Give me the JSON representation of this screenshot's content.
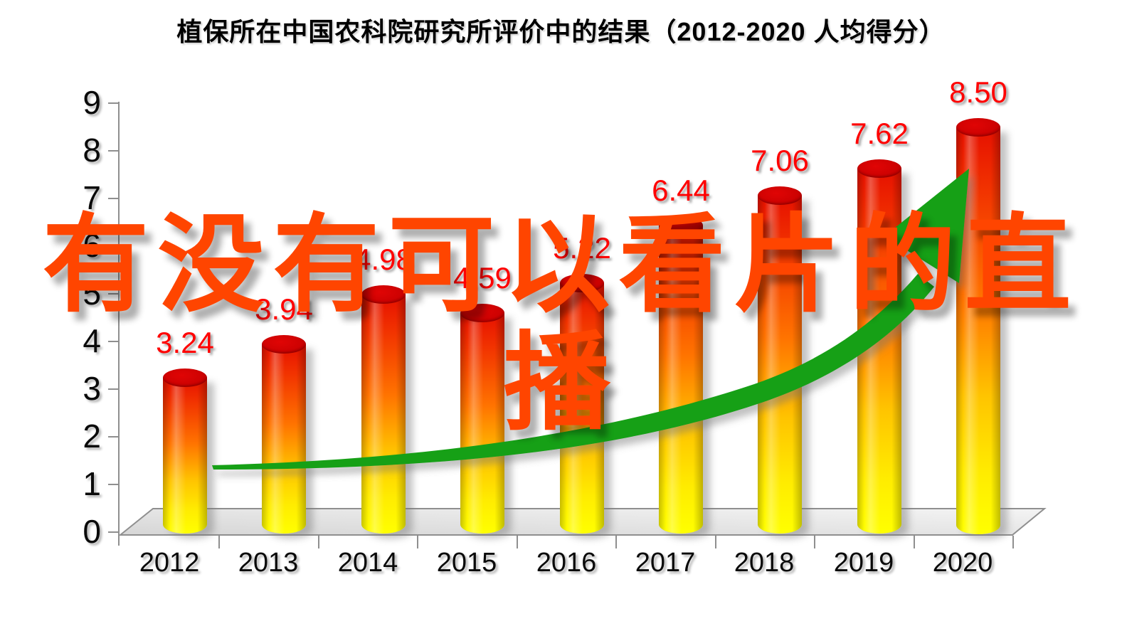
{
  "title": "植保所在中国农科院研究所评价中的结果（2012-2020  人均得分）",
  "watermark": {
    "line1": "有没有可以看片的直",
    "line2": "播"
  },
  "chart_data": {
    "type": "bar",
    "title": "植保所在中国农科院研究所评价中的结果（2012-2020  人均得分）",
    "categories": [
      "2012",
      "2013",
      "2014",
      "2015",
      "2016",
      "2017",
      "2018",
      "2019",
      "2020"
    ],
    "values": [
      3.24,
      3.94,
      4.98,
      4.59,
      5.22,
      6.44,
      7.06,
      7.62,
      8.5
    ],
    "data_labels": [
      "3.24",
      "3.94",
      "4.98",
      "4.59",
      "5.22",
      "6.44",
      "7.06",
      "7.62",
      "8.50"
    ],
    "xlabel": "",
    "ylabel": "",
    "y_ticks": [
      0,
      1,
      2,
      3,
      4,
      5,
      6,
      7,
      8,
      9
    ],
    "ylim": [
      0,
      9
    ],
    "grid": false,
    "legend": false,
    "bar_style": "3d-cylinder red-to-yellow gradient",
    "annotations": [
      "green upward trend arrow"
    ]
  },
  "colors": {
    "background": "#FFFFFF",
    "title_text": "#000000",
    "axis": "#8F8F8F",
    "axis_label": "#0A0A0A",
    "data_label": "#FF0000",
    "bar_top_red": "#CF0202",
    "bar_gradient_top": "#E61000",
    "bar_gradient_mid": "#FF7300",
    "bar_gradient_bottom": "#FFFF00",
    "trend_arrow_green": "#17A017",
    "floor_gray": "#DCDCDC",
    "watermark_orange": "#FF4500"
  }
}
